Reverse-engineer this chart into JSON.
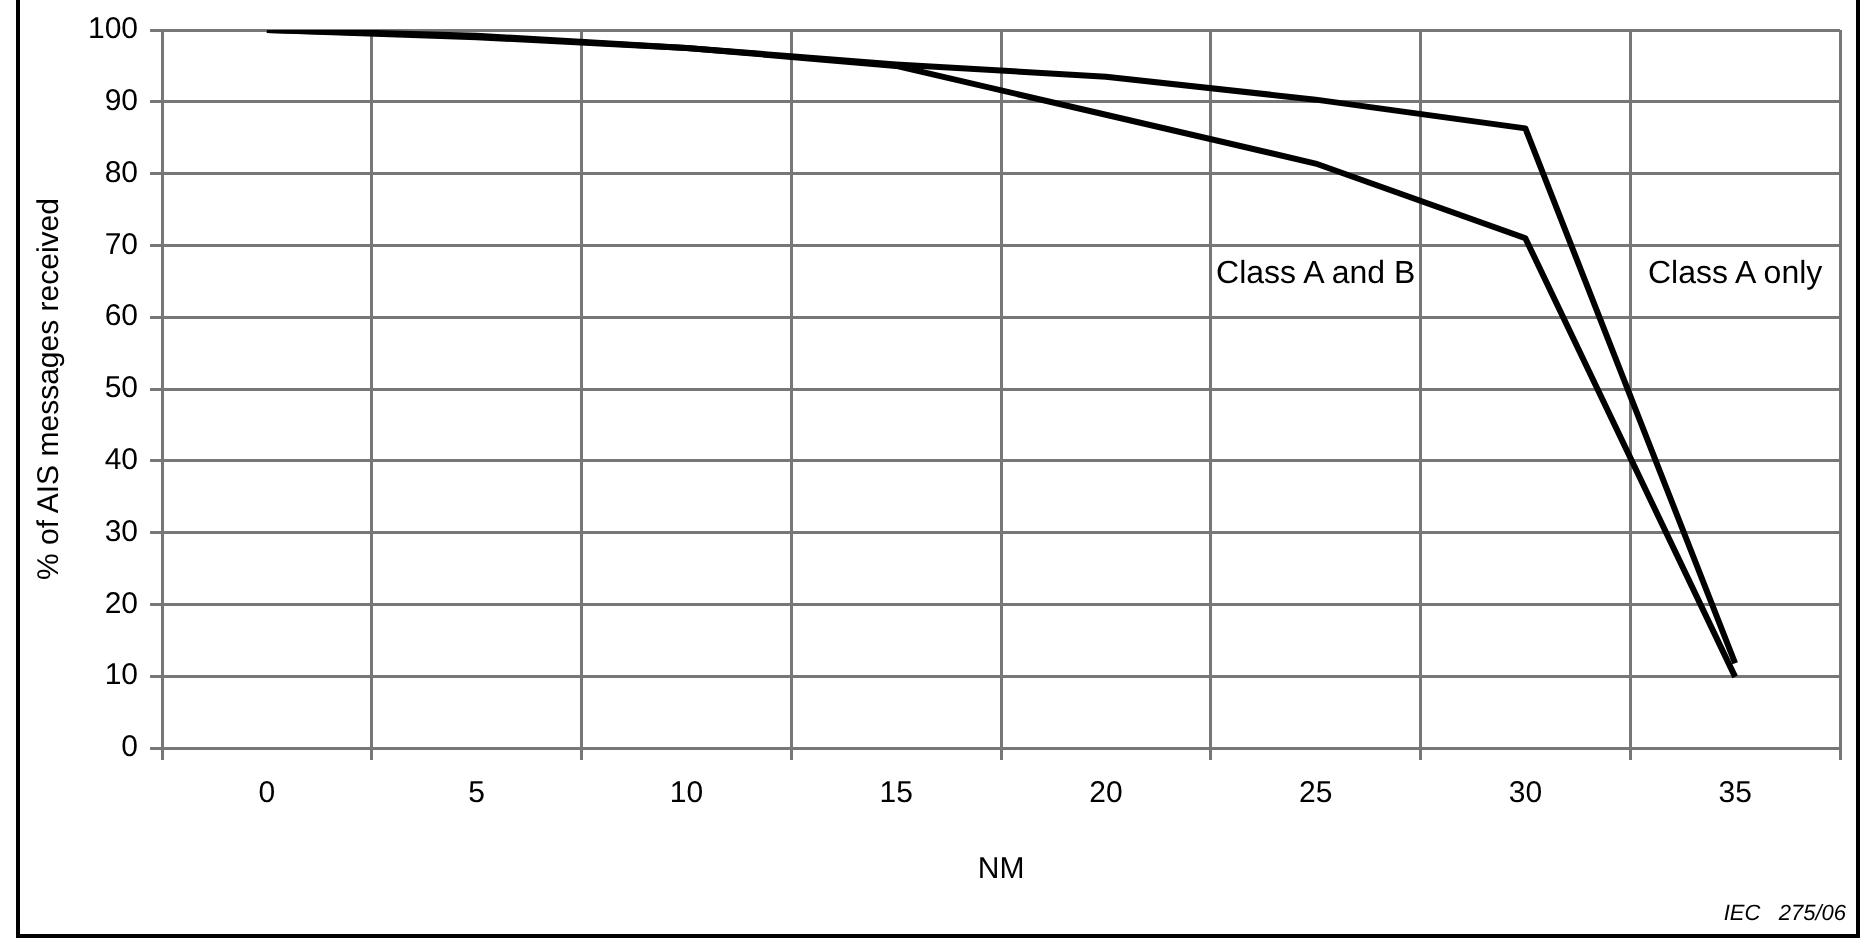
{
  "chart_data": {
    "type": "line",
    "xlabel": "NM",
    "ylabel": "% of AIS messages received",
    "categories": [
      "0",
      "5",
      "10",
      "15",
      "20",
      "25",
      "30",
      "35"
    ],
    "series": [
      {
        "name": "Class A and B",
        "color": "#000000",
        "values": [
          100,
          99,
          97.5,
          95,
          88.2,
          81.4,
          71,
          9.9
        ]
      },
      {
        "name": "Class A only",
        "color": "#000000",
        "values": [
          100,
          99.2,
          97.5,
          95.2,
          93.5,
          90.3,
          86.3,
          11.8
        ]
      }
    ],
    "ylim": [
      0,
      100
    ],
    "yticks": [
      0,
      10,
      20,
      30,
      40,
      50,
      60,
      70,
      80,
      90,
      100
    ],
    "grid": true,
    "legend": false,
    "marker": "none",
    "line_style": "solid",
    "annotations": [
      "IEC   275/06"
    ]
  }
}
